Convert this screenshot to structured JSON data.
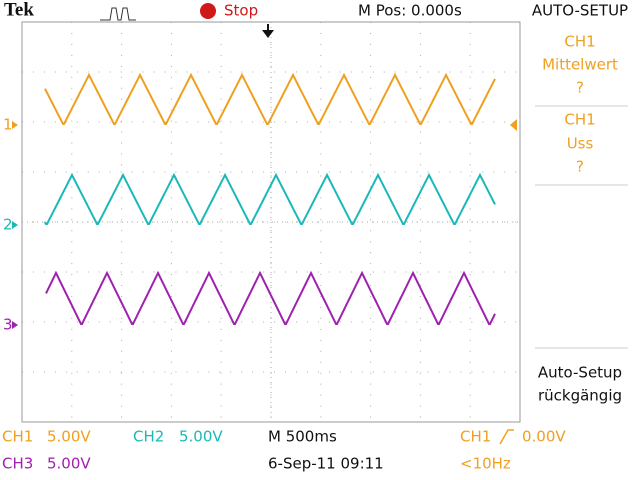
{
  "header": {
    "brand": "Tek",
    "status": "Stop",
    "position": "M Pos: 0.000s",
    "menu_title": "AUTO-SETUP"
  },
  "menu": [
    {
      "lines": [
        "CH1",
        "Mittelwert",
        "?"
      ]
    },
    {
      "lines": [
        "CH1",
        "Uss",
        "?"
      ]
    },
    {
      "lines": [
        "Auto-Setup",
        "rückgängig"
      ]
    }
  ],
  "channel_markers": [
    "1",
    "2",
    "3"
  ],
  "footer": {
    "ch1": "CH1",
    "ch1_scale": "5.00V",
    "ch2": "CH2",
    "ch2_scale": "5.00V",
    "ch3": "CH3",
    "ch3_scale": "5.00V",
    "timebase": "M 500ms",
    "datetime": "6-Sep-11 09:11",
    "trigger_source": "CH1",
    "trigger_level": "0.00V",
    "frequency": "<10Hz"
  }
}
